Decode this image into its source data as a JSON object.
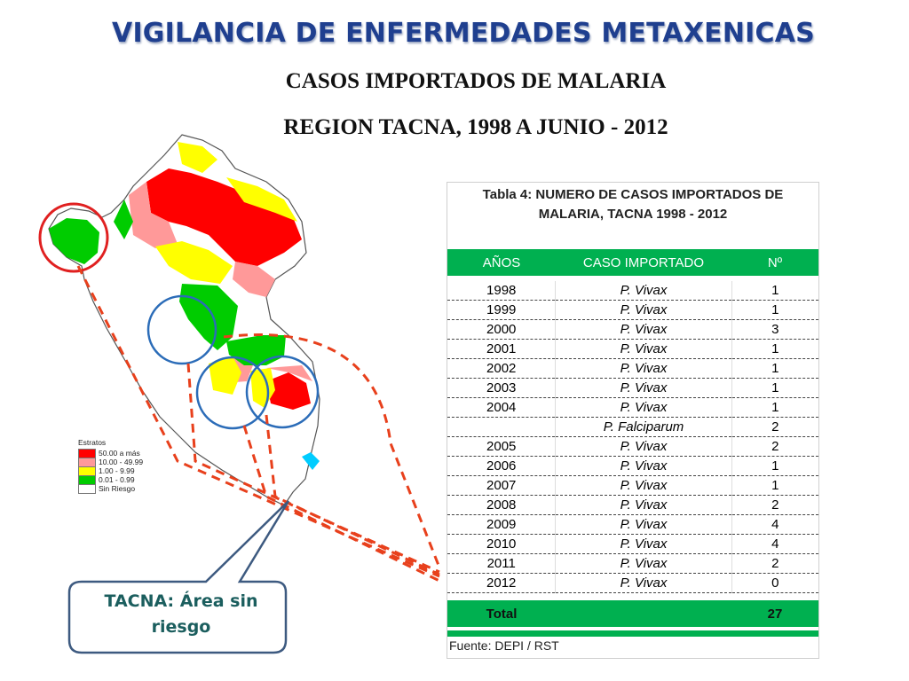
{
  "slide": {
    "title": "VIGILANCIA DE ENFERMEDADES METAXENICAS",
    "subtitle1": "CASOS IMPORTADOS DE MALARIA",
    "subtitle2": "REGION TACNA, 1998 A JUNIO - 2012"
  },
  "map": {
    "legend_title": "Estratos",
    "legend": [
      {
        "label": "50.00  a más",
        "color": "#ff0000"
      },
      {
        "label": "10.00 - 49.99",
        "color": "#ff9999"
      },
      {
        "label": "1.00 - 9.99",
        "color": "#ffff00"
      },
      {
        "label": "0.01 - 0.99",
        "color": "#00cc00"
      },
      {
        "label": "Sin Riesgo",
        "color": "#ffffff"
      }
    ],
    "callout_line1": "TACNA: Área sin",
    "callout_line2": "riesgo"
  },
  "table": {
    "caption_line1": "Tabla 4: NUMERO DE CASOS IMPORTADOS DE",
    "caption_line2": "MALARIA, TACNA 1998 - 2012",
    "headers": [
      "AÑOS",
      "CASO IMPORTADO",
      "Nº"
    ],
    "rows": [
      {
        "year": "1998",
        "case": "P. Vivax",
        "n": "1"
      },
      {
        "year": "1999",
        "case": "P. Vivax",
        "n": "1"
      },
      {
        "year": "2000",
        "case": "P. Vivax",
        "n": "3"
      },
      {
        "year": "2001",
        "case": "P. Vivax",
        "n": "1"
      },
      {
        "year": "2002",
        "case": "P. Vivax",
        "n": "1"
      },
      {
        "year": "2003",
        "case": "P. Vivax",
        "n": "1"
      },
      {
        "year": "2004",
        "case": "P. Vivax",
        "n": "1"
      },
      {
        "year": "",
        "case": "P. Falciparum",
        "n": "2"
      },
      {
        "year": "2005",
        "case": "P. Vivax",
        "n": "2"
      },
      {
        "year": "2006",
        "case": "P. Vivax",
        "n": "1"
      },
      {
        "year": "2007",
        "case": "P. Vivax",
        "n": "1"
      },
      {
        "year": "2008",
        "case": "P. Vivax",
        "n": "2"
      },
      {
        "year": "2009",
        "case": "P. Vivax",
        "n": "4"
      },
      {
        "year": "2010",
        "case": "P. Vivax",
        "n": "4"
      },
      {
        "year": "2011",
        "case": "P. Vivax",
        "n": "2"
      },
      {
        "year": "2012",
        "case": "P. Vivax",
        "n": "0"
      }
    ],
    "total_label": "Total",
    "total_value": "27",
    "source": "Fuente:  DEPI / RST"
  }
}
